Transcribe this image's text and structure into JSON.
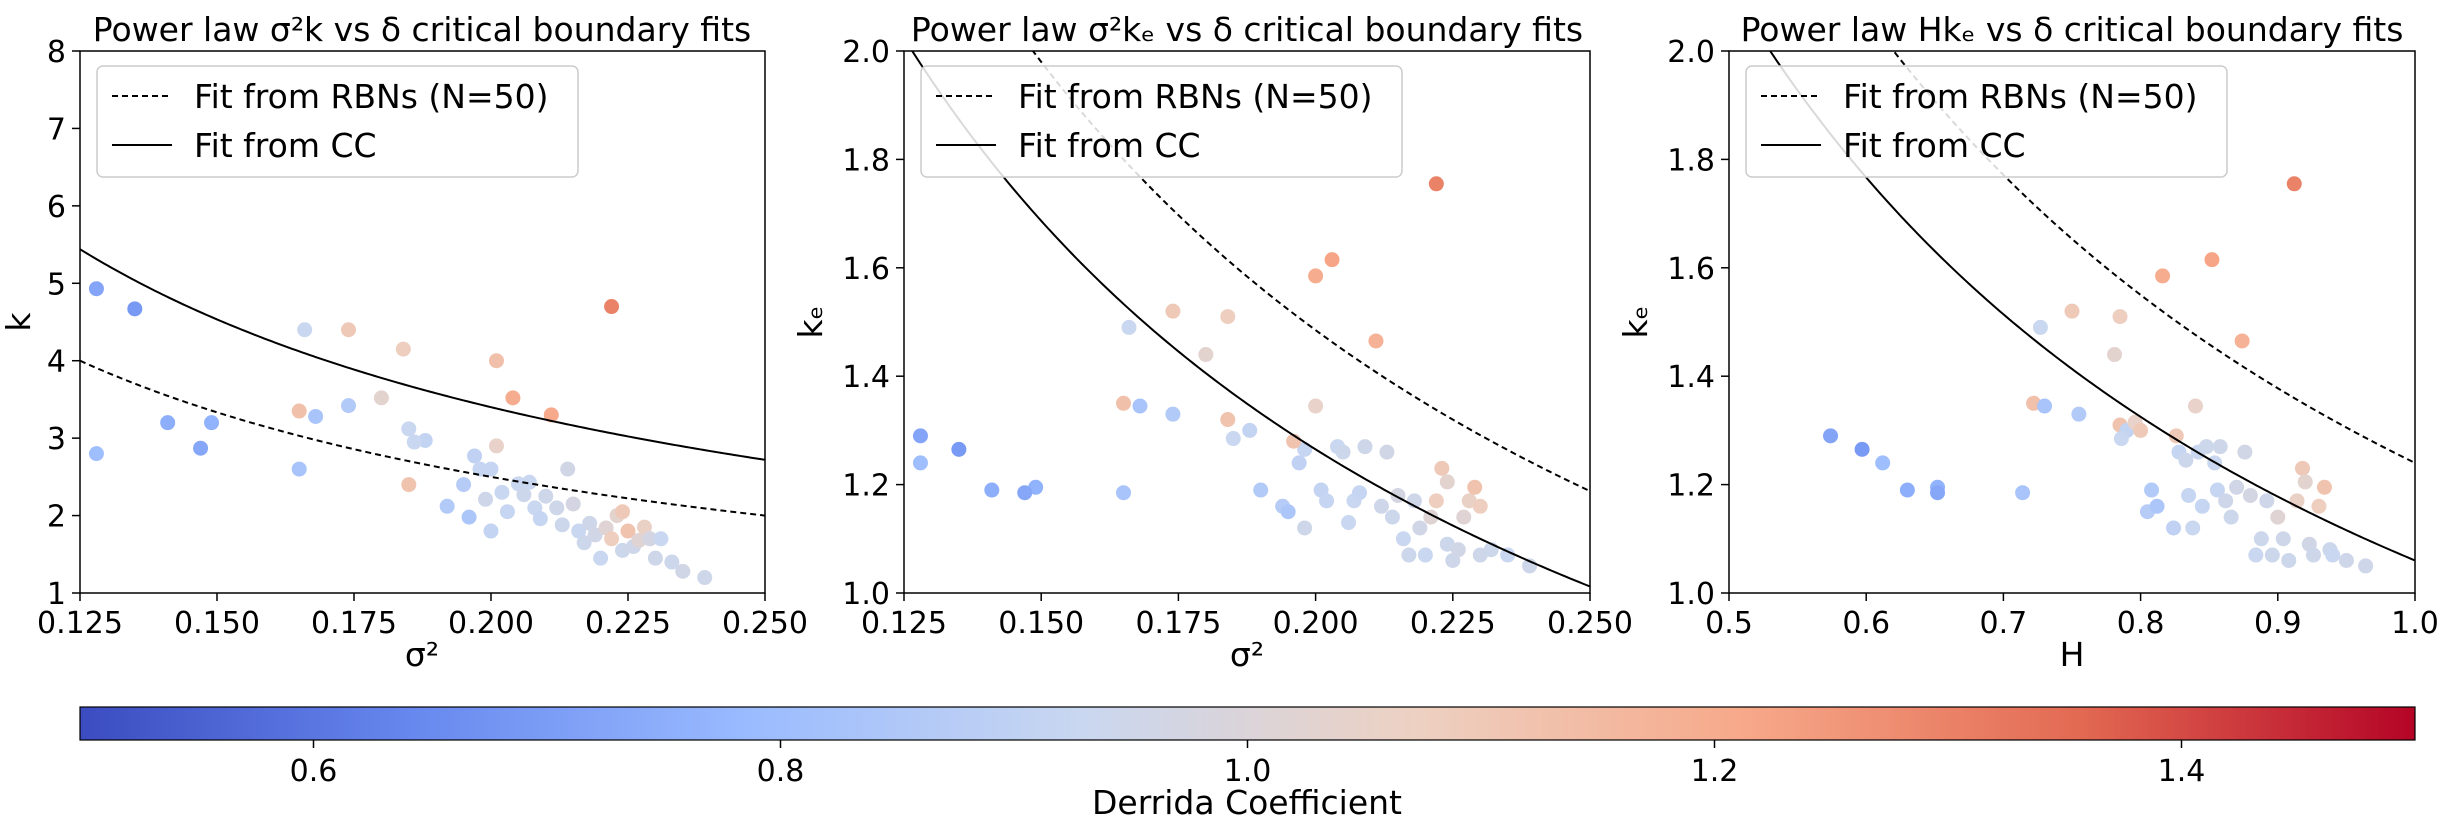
{
  "chart_data": [
    {
      "type": "scatter",
      "title": "Power law σ²k vs δ critical boundary fits",
      "xlabel": "σ²",
      "ylabel": "k",
      "xlim": [
        0.125,
        0.25
      ],
      "ylim": [
        1,
        8
      ],
      "xticks": [
        "0.125",
        "0.150",
        "0.175",
        "0.200",
        "0.225",
        "0.250"
      ],
      "yticks": [
        "1",
        "2",
        "3",
        "4",
        "5",
        "6",
        "7",
        "8"
      ],
      "grid": false,
      "legend_position": "top-left",
      "legend": [
        "Fit from RBNs (N=50)",
        "Fit from CC"
      ],
      "fits": [
        {
          "name": "Fit from RBNs (N=50)",
          "style": "dashed",
          "constant": 0.5
        },
        {
          "name": "Fit from CC",
          "style": "solid",
          "constant": 0.68
        }
      ],
      "points": [
        {
          "x": 0.128,
          "y": 4.93,
          "c": 0.72
        },
        {
          "x": 0.135,
          "y": 4.67,
          "c": 0.69
        },
        {
          "x": 0.128,
          "y": 2.8,
          "c": 0.8
        },
        {
          "x": 0.141,
          "y": 3.2,
          "c": 0.75
        },
        {
          "x": 0.149,
          "y": 3.2,
          "c": 0.76
        },
        {
          "x": 0.147,
          "y": 2.87,
          "c": 0.73
        },
        {
          "x": 0.165,
          "y": 3.35,
          "c": 1.13
        },
        {
          "x": 0.168,
          "y": 3.28,
          "c": 0.83
        },
        {
          "x": 0.165,
          "y": 2.6,
          "c": 0.83
        },
        {
          "x": 0.166,
          "y": 4.4,
          "c": 0.93
        },
        {
          "x": 0.174,
          "y": 4.4,
          "c": 1.1
        },
        {
          "x": 0.174,
          "y": 3.42,
          "c": 0.86
        },
        {
          "x": 0.184,
          "y": 4.15,
          "c": 1.08
        },
        {
          "x": 0.18,
          "y": 3.52,
          "c": 1.03
        },
        {
          "x": 0.185,
          "y": 3.12,
          "c": 0.93
        },
        {
          "x": 0.185,
          "y": 2.4,
          "c": 1.12
        },
        {
          "x": 0.188,
          "y": 2.97,
          "c": 0.91
        },
        {
          "x": 0.186,
          "y": 2.95,
          "c": 0.93
        },
        {
          "x": 0.192,
          "y": 2.12,
          "c": 0.86
        },
        {
          "x": 0.195,
          "y": 2.4,
          "c": 0.87
        },
        {
          "x": 0.196,
          "y": 1.98,
          "c": 0.84
        },
        {
          "x": 0.197,
          "y": 2.77,
          "c": 0.9
        },
        {
          "x": 0.198,
          "y": 2.6,
          "c": 0.92
        },
        {
          "x": 0.199,
          "y": 2.21,
          "c": 0.95
        },
        {
          "x": 0.2,
          "y": 1.8,
          "c": 0.91
        },
        {
          "x": 0.2,
          "y": 2.6,
          "c": 0.92
        },
        {
          "x": 0.201,
          "y": 2.9,
          "c": 1.05
        },
        {
          "x": 0.201,
          "y": 4.0,
          "c": 1.13
        },
        {
          "x": 0.202,
          "y": 2.3,
          "c": 0.93
        },
        {
          "x": 0.203,
          "y": 2.05,
          "c": 0.92
        },
        {
          "x": 0.204,
          "y": 3.52,
          "c": 1.2
        },
        {
          "x": 0.205,
          "y": 2.41,
          "c": 0.93
        },
        {
          "x": 0.206,
          "y": 2.27,
          "c": 0.94
        },
        {
          "x": 0.207,
          "y": 2.43,
          "c": 0.93
        },
        {
          "x": 0.208,
          "y": 2.1,
          "c": 0.93
        },
        {
          "x": 0.209,
          "y": 1.96,
          "c": 0.92
        },
        {
          "x": 0.21,
          "y": 2.25,
          "c": 0.95
        },
        {
          "x": 0.211,
          "y": 3.3,
          "c": 1.21
        },
        {
          "x": 0.212,
          "y": 2.1,
          "c": 0.95
        },
        {
          "x": 0.213,
          "y": 1.88,
          "c": 0.94
        },
        {
          "x": 0.214,
          "y": 2.6,
          "c": 0.96
        },
        {
          "x": 0.215,
          "y": 2.15,
          "c": 0.97
        },
        {
          "x": 0.216,
          "y": 1.8,
          "c": 0.93
        },
        {
          "x": 0.217,
          "y": 1.65,
          "c": 0.94
        },
        {
          "x": 0.218,
          "y": 1.9,
          "c": 0.95
        },
        {
          "x": 0.219,
          "y": 1.75,
          "c": 0.96
        },
        {
          "x": 0.22,
          "y": 1.45,
          "c": 0.93
        },
        {
          "x": 0.221,
          "y": 1.84,
          "c": 1.02
        },
        {
          "x": 0.222,
          "y": 4.7,
          "c": 1.3
        },
        {
          "x": 0.222,
          "y": 1.7,
          "c": 1.08
        },
        {
          "x": 0.223,
          "y": 2.0,
          "c": 1.03
        },
        {
          "x": 0.224,
          "y": 2.05,
          "c": 1.1
        },
        {
          "x": 0.224,
          "y": 1.55,
          "c": 0.94
        },
        {
          "x": 0.225,
          "y": 1.8,
          "c": 1.12
        },
        {
          "x": 0.226,
          "y": 1.6,
          "c": 0.95
        },
        {
          "x": 0.227,
          "y": 1.68,
          "c": 1.02
        },
        {
          "x": 0.228,
          "y": 1.85,
          "c": 1.06
        },
        {
          "x": 0.229,
          "y": 1.7,
          "c": 0.97
        },
        {
          "x": 0.23,
          "y": 1.45,
          "c": 0.95
        },
        {
          "x": 0.231,
          "y": 1.7,
          "c": 0.93
        },
        {
          "x": 0.233,
          "y": 1.4,
          "c": 0.94
        },
        {
          "x": 0.235,
          "y": 1.28,
          "c": 0.96
        },
        {
          "x": 0.239,
          "y": 1.2,
          "c": 0.95
        }
      ]
    },
    {
      "type": "scatter",
      "title": "Power law σ²kₑ vs δ critical boundary fits",
      "xlabel": "σ²",
      "ylabel": "kₑ",
      "xlim": [
        0.125,
        0.25
      ],
      "ylim": [
        1.0,
        2.0
      ],
      "xticks": [
        "0.125",
        "0.150",
        "0.175",
        "0.200",
        "0.225",
        "0.250"
      ],
      "yticks": [
        "1.0",
        "1.2",
        "1.4",
        "1.6",
        "1.8",
        "2.0"
      ],
      "grid": false,
      "legend_position": "top-left",
      "legend": [
        "Fit from RBNs (N=50)",
        "Fit from CC"
      ],
      "fits": [
        {
          "name": "Fit from RBNs (N=50)",
          "style": "dashed",
          "constant": 0.297
        },
        {
          "name": "Fit from CC",
          "style": "solid",
          "constant": 0.253
        }
      ],
      "points": [
        {
          "x": 0.128,
          "y": 1.29,
          "c": 0.72
        },
        {
          "x": 0.135,
          "y": 1.265,
          "c": 0.69
        },
        {
          "x": 0.128,
          "y": 1.24,
          "c": 0.8
        },
        {
          "x": 0.141,
          "y": 1.19,
          "c": 0.75
        },
        {
          "x": 0.149,
          "y": 1.195,
          "c": 0.76
        },
        {
          "x": 0.147,
          "y": 1.185,
          "c": 0.73
        },
        {
          "x": 0.165,
          "y": 1.35,
          "c": 1.13
        },
        {
          "x": 0.168,
          "y": 1.345,
          "c": 0.83
        },
        {
          "x": 0.165,
          "y": 1.185,
          "c": 0.83
        },
        {
          "x": 0.166,
          "y": 1.49,
          "c": 0.93
        },
        {
          "x": 0.174,
          "y": 1.52,
          "c": 1.1
        },
        {
          "x": 0.174,
          "y": 1.33,
          "c": 0.86
        },
        {
          "x": 0.184,
          "y": 1.51,
          "c": 1.08
        },
        {
          "x": 0.18,
          "y": 1.44,
          "c": 1.03
        },
        {
          "x": 0.185,
          "y": 1.285,
          "c": 0.93
        },
        {
          "x": 0.184,
          "y": 1.32,
          "c": 1.12
        },
        {
          "x": 0.188,
          "y": 1.3,
          "c": 0.91
        },
        {
          "x": 0.19,
          "y": 1.19,
          "c": 0.86
        },
        {
          "x": 0.194,
          "y": 1.16,
          "c": 0.87
        },
        {
          "x": 0.195,
          "y": 1.15,
          "c": 0.84
        },
        {
          "x": 0.197,
          "y": 1.24,
          "c": 0.9
        },
        {
          "x": 0.198,
          "y": 1.265,
          "c": 0.92
        },
        {
          "x": 0.198,
          "y": 1.12,
          "c": 0.95
        },
        {
          "x": 0.196,
          "y": 1.28,
          "c": 1.12
        },
        {
          "x": 0.2,
          "y": 1.345,
          "c": 1.05
        },
        {
          "x": 0.2,
          "y": 1.585,
          "c": 1.2
        },
        {
          "x": 0.201,
          "y": 1.19,
          "c": 0.91
        },
        {
          "x": 0.202,
          "y": 1.17,
          "c": 0.92
        },
        {
          "x": 0.203,
          "y": 1.615,
          "c": 1.22
        },
        {
          "x": 0.204,
          "y": 1.27,
          "c": 0.93
        },
        {
          "x": 0.205,
          "y": 1.26,
          "c": 0.94
        },
        {
          "x": 0.206,
          "y": 1.13,
          "c": 0.93
        },
        {
          "x": 0.207,
          "y": 1.17,
          "c": 0.93
        },
        {
          "x": 0.208,
          "y": 1.185,
          "c": 0.92
        },
        {
          "x": 0.209,
          "y": 1.27,
          "c": 0.95
        },
        {
          "x": 0.211,
          "y": 1.465,
          "c": 1.18
        },
        {
          "x": 0.212,
          "y": 1.16,
          "c": 0.95
        },
        {
          "x": 0.213,
          "y": 1.26,
          "c": 0.96
        },
        {
          "x": 0.214,
          "y": 1.14,
          "c": 0.94
        },
        {
          "x": 0.215,
          "y": 1.18,
          "c": 0.97
        },
        {
          "x": 0.216,
          "y": 1.1,
          "c": 0.93
        },
        {
          "x": 0.217,
          "y": 1.07,
          "c": 0.94
        },
        {
          "x": 0.218,
          "y": 1.17,
          "c": 0.95
        },
        {
          "x": 0.219,
          "y": 1.12,
          "c": 0.96
        },
        {
          "x": 0.22,
          "y": 1.07,
          "c": 0.93
        },
        {
          "x": 0.221,
          "y": 1.14,
          "c": 1.02
        },
        {
          "x": 0.222,
          "y": 1.755,
          "c": 1.3
        },
        {
          "x": 0.222,
          "y": 1.17,
          "c": 1.08
        },
        {
          "x": 0.223,
          "y": 1.23,
          "c": 1.1
        },
        {
          "x": 0.224,
          "y": 1.205,
          "c": 1.03
        },
        {
          "x": 0.224,
          "y": 1.09,
          "c": 0.94
        },
        {
          "x": 0.225,
          "y": 1.06,
          "c": 0.95
        },
        {
          "x": 0.226,
          "y": 1.08,
          "c": 0.96
        },
        {
          "x": 0.227,
          "y": 1.14,
          "c": 1.02
        },
        {
          "x": 0.228,
          "y": 1.17,
          "c": 1.06
        },
        {
          "x": 0.229,
          "y": 1.195,
          "c": 1.12
        },
        {
          "x": 0.23,
          "y": 1.16,
          "c": 1.08
        },
        {
          "x": 0.23,
          "y": 1.07,
          "c": 0.95
        },
        {
          "x": 0.232,
          "y": 1.08,
          "c": 0.94
        },
        {
          "x": 0.235,
          "y": 1.07,
          "c": 0.93
        },
        {
          "x": 0.239,
          "y": 1.05,
          "c": 0.95
        }
      ]
    },
    {
      "type": "scatter",
      "title": "Power law Hkₑ vs δ critical boundary fits",
      "xlabel": "H",
      "ylabel": "kₑ",
      "xlim": [
        0.5,
        1.0
      ],
      "ylim": [
        1.0,
        2.0
      ],
      "xticks": [
        "0.5",
        "0.6",
        "0.7",
        "0.8",
        "0.9",
        "1.0"
      ],
      "yticks": [
        "1.0",
        "1.2",
        "1.4",
        "1.6",
        "1.8",
        "2.0"
      ],
      "grid": false,
      "legend_position": "top-left",
      "legend": [
        "Fit from RBNs (N=50)",
        "Fit from CC"
      ],
      "fits": [
        {
          "name": "Fit from RBNs (N=50)",
          "style": "dashed",
          "constant": 1.24
        },
        {
          "name": "Fit from CC",
          "style": "solid",
          "constant": 1.06
        }
      ],
      "points": [
        {
          "x": 0.574,
          "y": 1.29,
          "c": 0.72
        },
        {
          "x": 0.597,
          "y": 1.265,
          "c": 0.69
        },
        {
          "x": 0.612,
          "y": 1.24,
          "c": 0.8
        },
        {
          "x": 0.63,
          "y": 1.19,
          "c": 0.75
        },
        {
          "x": 0.652,
          "y": 1.195,
          "c": 0.76
        },
        {
          "x": 0.652,
          "y": 1.185,
          "c": 0.73
        },
        {
          "x": 0.714,
          "y": 1.185,
          "c": 0.83
        },
        {
          "x": 0.722,
          "y": 1.35,
          "c": 1.13
        },
        {
          "x": 0.727,
          "y": 1.49,
          "c": 0.93
        },
        {
          "x": 0.73,
          "y": 1.345,
          "c": 0.83
        },
        {
          "x": 0.75,
          "y": 1.52,
          "c": 1.1
        },
        {
          "x": 0.755,
          "y": 1.33,
          "c": 0.86
        },
        {
          "x": 0.785,
          "y": 1.51,
          "c": 1.08
        },
        {
          "x": 0.781,
          "y": 1.44,
          "c": 1.03
        },
        {
          "x": 0.785,
          "y": 1.31,
          "c": 1.12
        },
        {
          "x": 0.79,
          "y": 1.3,
          "c": 0.91
        },
        {
          "x": 0.786,
          "y": 1.285,
          "c": 0.93
        },
        {
          "x": 0.796,
          "y": 1.315,
          "c": 1.05
        },
        {
          "x": 0.8,
          "y": 1.3,
          "c": 1.1
        },
        {
          "x": 0.805,
          "y": 1.15,
          "c": 0.87
        },
        {
          "x": 0.808,
          "y": 1.19,
          "c": 0.86
        },
        {
          "x": 0.812,
          "y": 1.16,
          "c": 0.84
        },
        {
          "x": 0.816,
          "y": 1.585,
          "c": 1.2
        },
        {
          "x": 0.824,
          "y": 1.12,
          "c": 0.9
        },
        {
          "x": 0.826,
          "y": 1.29,
          "c": 1.1
        },
        {
          "x": 0.828,
          "y": 1.26,
          "c": 0.92
        },
        {
          "x": 0.833,
          "y": 1.245,
          "c": 0.94
        },
        {
          "x": 0.835,
          "y": 1.18,
          "c": 0.92
        },
        {
          "x": 0.838,
          "y": 1.12,
          "c": 0.93
        },
        {
          "x": 0.84,
          "y": 1.345,
          "c": 1.05
        },
        {
          "x": 0.842,
          "y": 1.26,
          "c": 0.93
        },
        {
          "x": 0.845,
          "y": 1.16,
          "c": 0.92
        },
        {
          "x": 0.848,
          "y": 1.27,
          "c": 0.94
        },
        {
          "x": 0.852,
          "y": 1.615,
          "c": 1.22
        },
        {
          "x": 0.854,
          "y": 1.24,
          "c": 0.93
        },
        {
          "x": 0.856,
          "y": 1.19,
          "c": 0.92
        },
        {
          "x": 0.858,
          "y": 1.27,
          "c": 0.95
        },
        {
          "x": 0.862,
          "y": 1.17,
          "c": 0.95
        },
        {
          "x": 0.866,
          "y": 1.14,
          "c": 0.94
        },
        {
          "x": 0.87,
          "y": 1.195,
          "c": 0.96
        },
        {
          "x": 0.874,
          "y": 1.465,
          "c": 1.18
        },
        {
          "x": 0.876,
          "y": 1.26,
          "c": 0.96
        },
        {
          "x": 0.88,
          "y": 1.18,
          "c": 0.97
        },
        {
          "x": 0.884,
          "y": 1.07,
          "c": 0.93
        },
        {
          "x": 0.888,
          "y": 1.1,
          "c": 0.94
        },
        {
          "x": 0.892,
          "y": 1.17,
          "c": 0.95
        },
        {
          "x": 0.896,
          "y": 1.07,
          "c": 0.94
        },
        {
          "x": 0.9,
          "y": 1.14,
          "c": 1.02
        },
        {
          "x": 0.904,
          "y": 1.1,
          "c": 0.95
        },
        {
          "x": 0.908,
          "y": 1.06,
          "c": 0.94
        },
        {
          "x": 0.912,
          "y": 1.755,
          "c": 1.3
        },
        {
          "x": 0.914,
          "y": 1.17,
          "c": 1.06
        },
        {
          "x": 0.918,
          "y": 1.23,
          "c": 1.1
        },
        {
          "x": 0.92,
          "y": 1.205,
          "c": 1.03
        },
        {
          "x": 0.923,
          "y": 1.09,
          "c": 0.96
        },
        {
          "x": 0.926,
          "y": 1.07,
          "c": 0.95
        },
        {
          "x": 0.93,
          "y": 1.16,
          "c": 1.08
        },
        {
          "x": 0.934,
          "y": 1.195,
          "c": 1.12
        },
        {
          "x": 0.938,
          "y": 1.08,
          "c": 0.94
        },
        {
          "x": 0.94,
          "y": 1.07,
          "c": 0.93
        },
        {
          "x": 0.95,
          "y": 1.06,
          "c": 0.95
        },
        {
          "x": 0.964,
          "y": 1.05,
          "c": 0.95
        }
      ]
    }
  ],
  "colorbar": {
    "label": "Derrida Coefficient",
    "range": [
      0.5,
      1.5
    ],
    "ticks": [
      "0.6",
      "0.8",
      "1.0",
      "1.2",
      "1.4"
    ],
    "colormap": "coolwarm",
    "colors": [
      "#3b4cc0",
      "#6788ee",
      "#9abbff",
      "#c9d7f0",
      "#edd1c2",
      "#f7a889",
      "#e26952",
      "#b40426"
    ]
  }
}
